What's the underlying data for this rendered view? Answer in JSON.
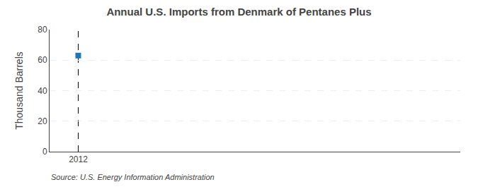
{
  "chart_data": {
    "type": "scatter",
    "title": "Annual U.S. Imports from Denmark of Pentanes Plus",
    "ylabel": "Thousand Barrels",
    "annotations": [
      "Source: U.S. Energy Information Administration"
    ],
    "x": [
      2012
    ],
    "values": [
      63
    ],
    "marker": "square",
    "vline": 2012,
    "xlim": [
      2011.7,
      2016.0
    ],
    "xticks": [
      2012
    ],
    "ylim": [
      0,
      80
    ],
    "yticks": [
      0,
      20,
      40,
      60,
      80
    ],
    "grid": "y"
  }
}
